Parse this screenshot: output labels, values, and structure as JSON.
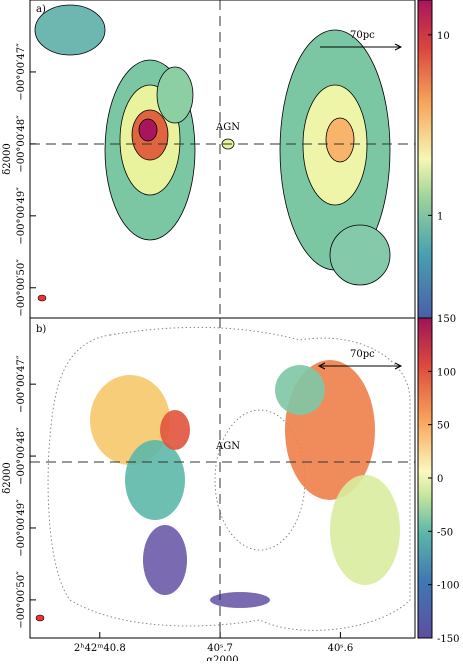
{
  "chart_data": [
    {
      "type": "image",
      "panel_label": "a)",
      "scale_bar": "70pc",
      "annotation": "AGN",
      "ylabel": "δ2000",
      "ylim": [
        -50.42,
        -46.0
      ],
      "yticks": [
        {
          "value": -47,
          "label": "−00°00′47″"
        },
        {
          "value": -48,
          "label": "−00°00′48″"
        },
        {
          "value": -49,
          "label": "−00°00′49″"
        },
        {
          "value": -50,
          "label": "−00°00′50″"
        }
      ],
      "colorbar_lim": [
        0.27,
        15.6
      ],
      "colorbar_ticks": [
        1,
        10
      ],
      "colorbar_log": true
    },
    {
      "type": "image",
      "panel_label": "b)",
      "scale_bar": "70pc",
      "annotation": "AGN",
      "ylabel": "δ2000",
      "xlabel": "α2000",
      "ylim": [
        -50.53,
        -46.08
      ],
      "yticks": [
        {
          "value": -47,
          "label": "−00°00′47″"
        },
        {
          "value": -48,
          "label": "−00°00′48″"
        },
        {
          "value": -49,
          "label": "−00°00′49″"
        },
        {
          "value": -50,
          "label": "−00°00′50″"
        }
      ],
      "xlim": [
        40.858,
        40.538
      ],
      "xticks": [
        {
          "value": 40.8,
          "label": "2ʰ42ᵐ40.8"
        },
        {
          "value": 40.7,
          "label": "40ˢ.7"
        },
        {
          "value": 40.6,
          "label": "40ˢ.6"
        }
      ],
      "colorbar_lim": [
        -150,
        150
      ],
      "colorbar_ticks": [
        -150,
        -100,
        -50,
        0,
        50,
        100,
        150
      ],
      "colorbar_log": false
    }
  ]
}
